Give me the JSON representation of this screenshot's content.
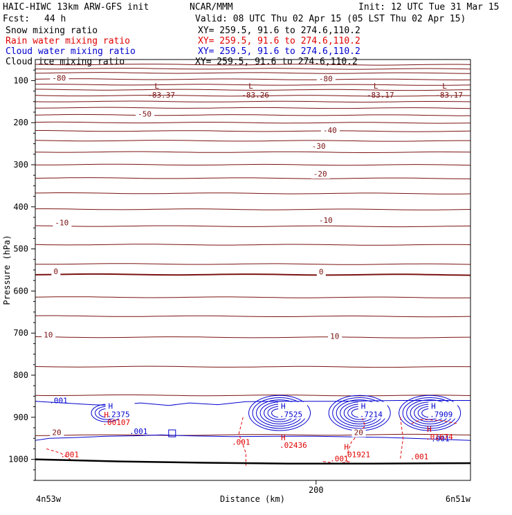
{
  "header": {
    "title": "HAIC-HIWC 13km ARW-GFS init",
    "org": "NCAR/MMM",
    "init": "Init: 12 UTC Tue 31 Mar 15",
    "fcst_label": "Fcst:",
    "fcst_value": "44 h",
    "valid": "Valid: 08 UTC Thu 02 Apr 15 (05 LST Thu 02 Apr 15)"
  },
  "fields": [
    {
      "name": "Snow mixing ratio",
      "xy": "XY= 259.5, 91.6 to 274.6,110.2",
      "color": "#000000"
    },
    {
      "name": "Rain water mixing ratio",
      "xy": "XY= 259.5, 91.6 to 274.6,110.2",
      "color": "#e00000"
    },
    {
      "name": "Cloud water mixing ratio",
      "xy": "XY= 259.5, 91.6 to 274.6,110.2",
      "color": "#0000d0"
    },
    {
      "name": "Cloud ice mixing ratio",
      "xy": "XY= 259.5, 91.6 to 274.6,110.2",
      "color": "#000000"
    }
  ],
  "chart_data": {
    "type": "cross-section contour",
    "xlabel": "Distance (km)",
    "ylabel": "Pressure (hPa)",
    "xlim": [
      0,
      310
    ],
    "ylim": [
      1050,
      50
    ],
    "x_ticks": [
      200
    ],
    "y_ticks": [
      100,
      200,
      300,
      400,
      500,
      600,
      700,
      800,
      900,
      1000
    ],
    "left_endpoint": "4n53w",
    "right_endpoint": "6n51w",
    "grid": false,
    "colors": {
      "temperature": "#7a1010",
      "cloud_water": "#0000d0",
      "rain_water": "#e00000",
      "terrain": "#000000"
    },
    "temperature_isotherm_levels_hpa": [
      62,
      72,
      82,
      97,
      110,
      122,
      136,
      150,
      165,
      182,
      200,
      220,
      243,
      270,
      300,
      332,
      368,
      406,
      446,
      490,
      536,
      561,
      615,
      660,
      710,
      780,
      848,
      942
    ],
    "temperature_labels": [
      {
        "text": "-80",
        "x": 12,
        "p": 100
      },
      {
        "text": "-80",
        "x": 202,
        "p": 102
      },
      {
        "text": "-50",
        "x": 73,
        "p": 186
      },
      {
        "text": "-40",
        "x": 205,
        "p": 224
      },
      {
        "text": "-30",
        "x": 197,
        "p": 262
      },
      {
        "text": "-20",
        "x": 198,
        "p": 328
      },
      {
        "text": "-10",
        "x": 14,
        "p": 444
      },
      {
        "text": "-10",
        "x": 202,
        "p": 438
      },
      {
        "text": "0",
        "x": 13,
        "p": 560
      },
      {
        "text": "0",
        "x": 202,
        "p": 561
      },
      {
        "text": "10",
        "x": 6,
        "p": 710
      },
      {
        "text": "10",
        "x": 210,
        "p": 714
      },
      {
        "text": "20",
        "x": 12,
        "p": 942
      },
      {
        "text": "20",
        "x": 227,
        "p": 942
      }
    ],
    "tropopause_minima": [
      {
        "mark": "L",
        "value": "-83.37",
        "x": 80,
        "p": 80
      },
      {
        "mark": "L",
        "value": "-83.26",
        "x": 147,
        "p": 80
      },
      {
        "mark": "L",
        "value": "-83.17",
        "x": 236,
        "p": 80
      },
      {
        "mark": "L",
        "value": "-83.17",
        "x": 285,
        "p": 80
      }
    ],
    "cloud_water_maxima": [
      {
        "mark": "H",
        "value": ".2375",
        "x": 51,
        "p": 880
      },
      {
        "mark": "H",
        "value": ".7525",
        "x": 174,
        "p": 880
      },
      {
        "mark": "H",
        "value": ".7214",
        "x": 231,
        "p": 880
      },
      {
        "mark": "H",
        "value": ".7909",
        "x": 281,
        "p": 880
      }
    ],
    "cloud_water_labels": [
      {
        "text": ".001",
        "x": 10,
        "p": 867
      },
      {
        "text": ".001",
        "x": 67,
        "p": 940
      },
      {
        "text": ".001",
        "x": 282,
        "p": 957
      }
    ],
    "rain_water_maxima": [
      {
        "mark": "H",
        "value": ".00107",
        "x": 48,
        "p": 900
      },
      {
        "mark": "H",
        "value": ".02436",
        "x": 174,
        "p": 955
      },
      {
        "mark": "H",
        "value": ".01921",
        "x": 219,
        "p": 977
      },
      {
        "mark": "H",
        "value": ".01674",
        "x": 278,
        "p": 935
      }
    ],
    "rain_water_labels": [
      {
        "text": ".001",
        "x": 18,
        "p": 995
      },
      {
        "text": ".001",
        "x": 140,
        "p": 965
      },
      {
        "text": ".001",
        "x": 210,
        "p": 1005
      },
      {
        "text": ".001",
        "x": 267,
        "p": 1000
      }
    ]
  }
}
